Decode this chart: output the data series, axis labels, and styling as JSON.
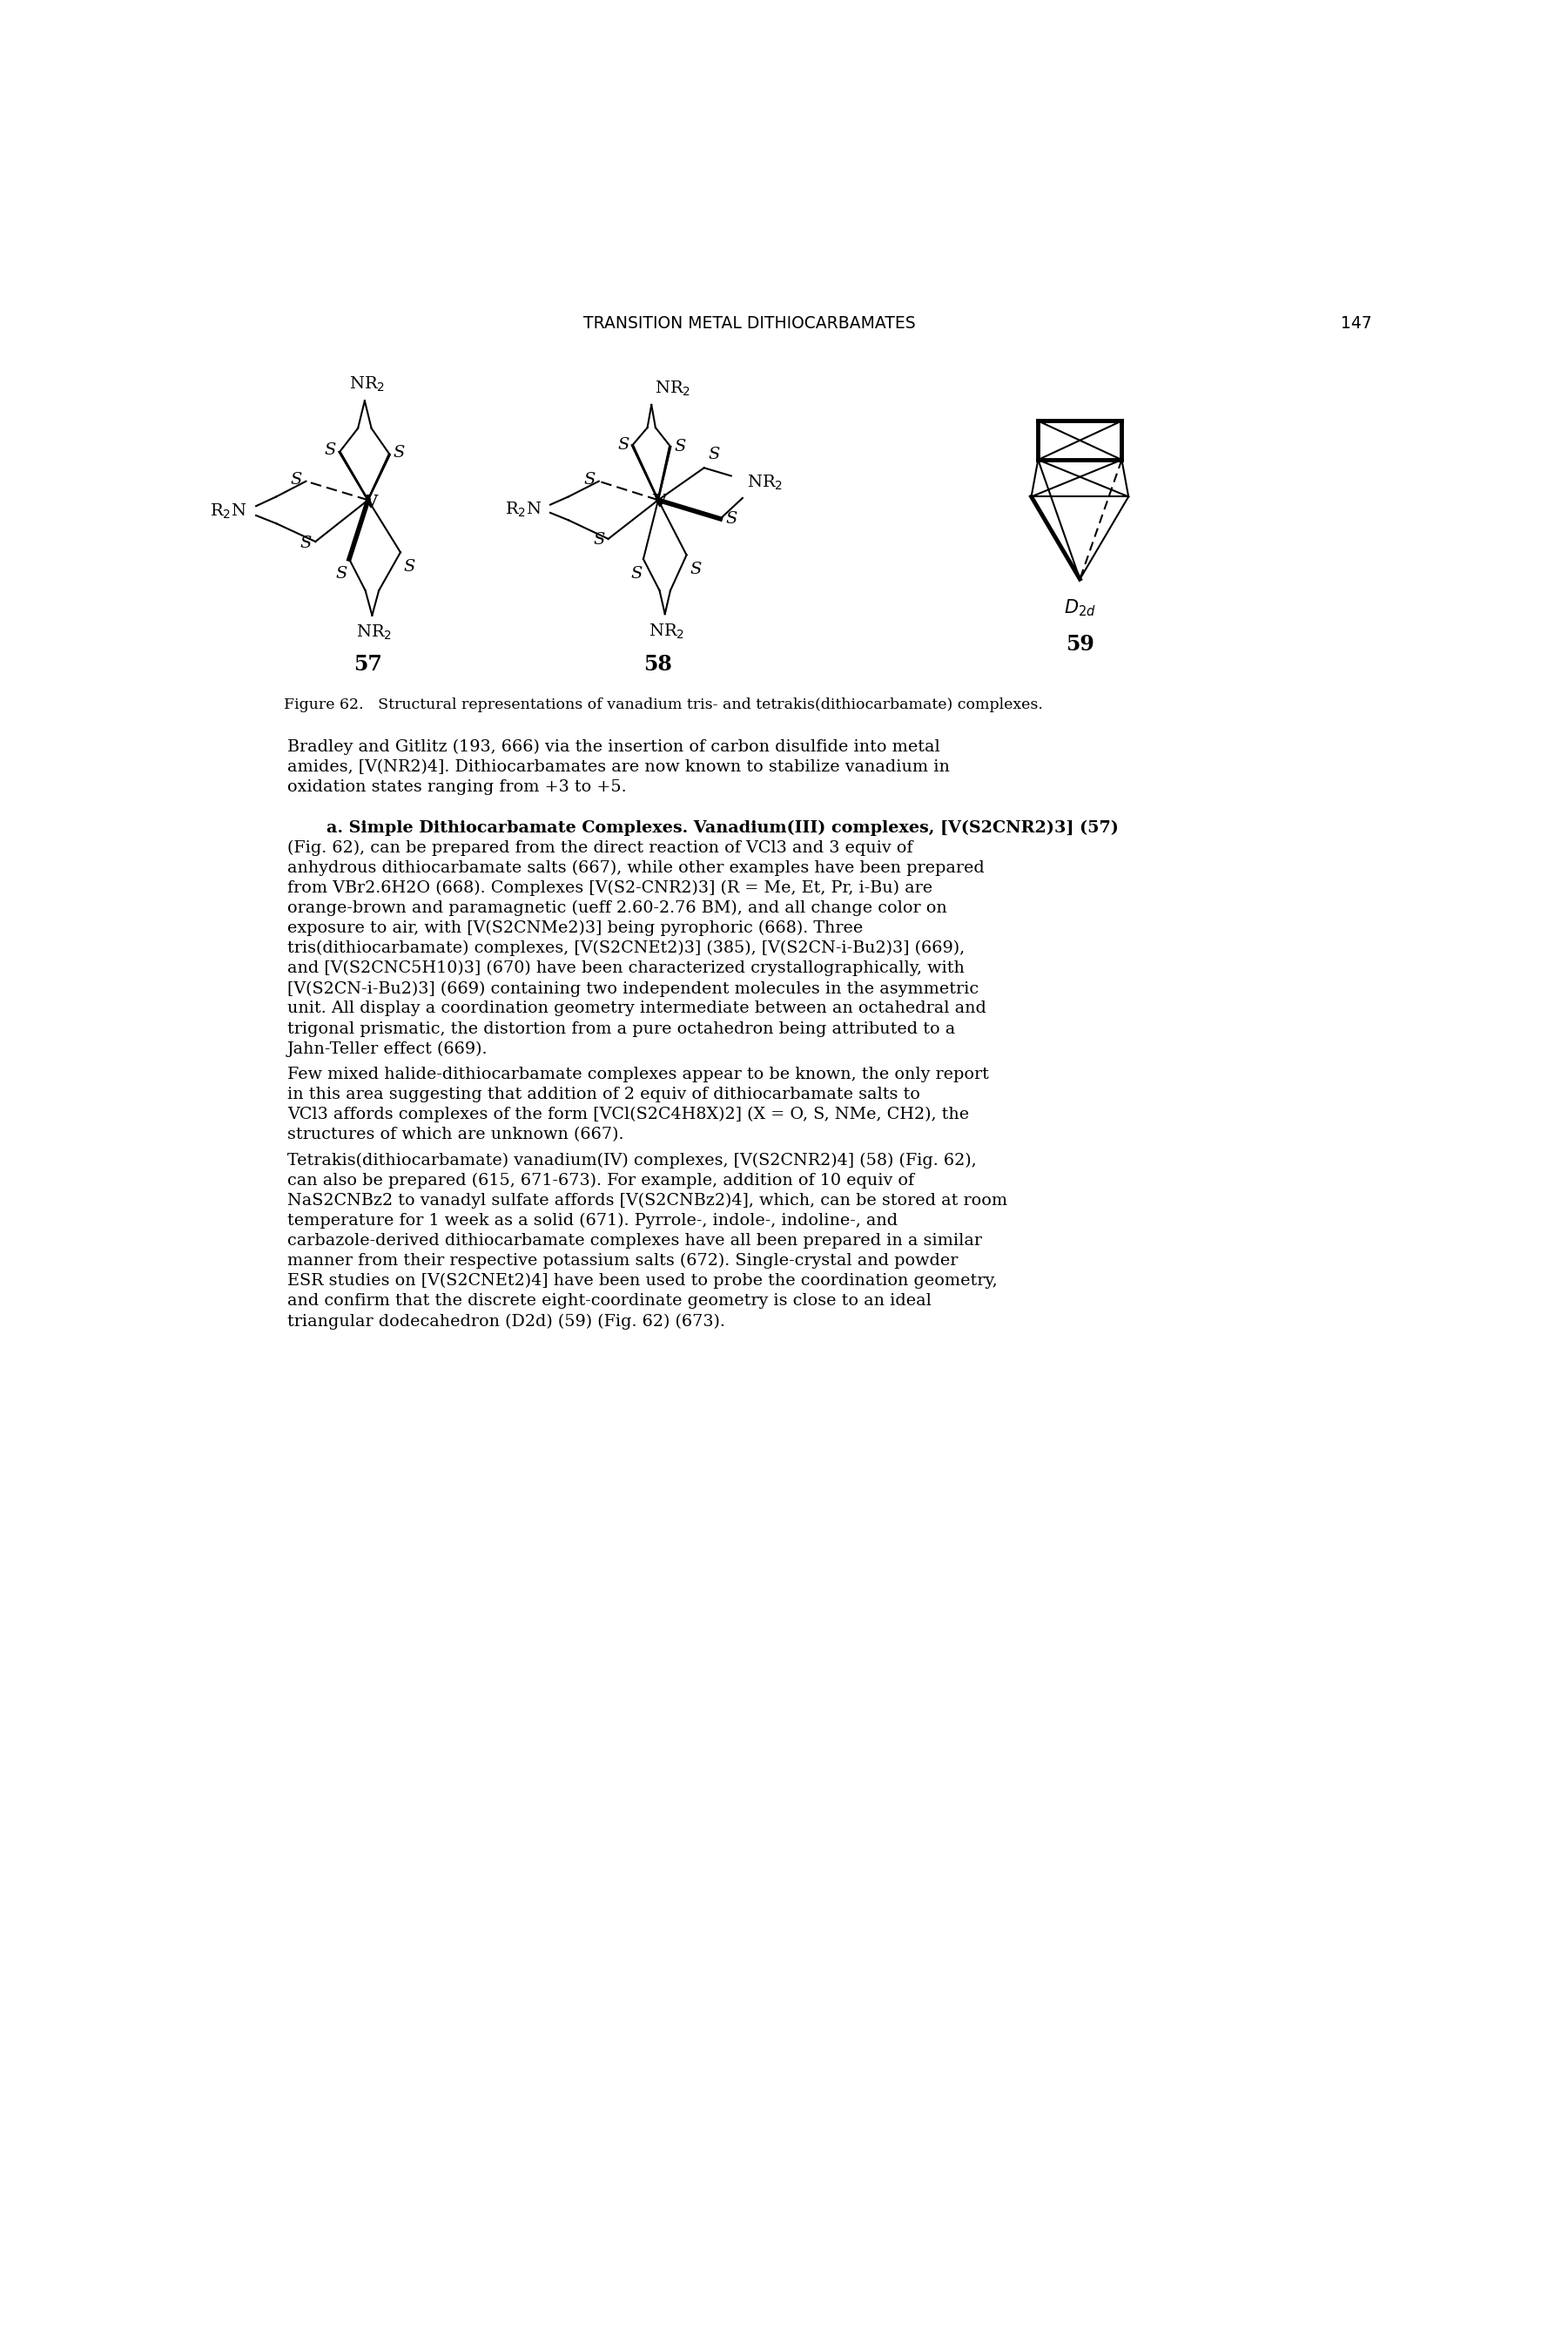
{
  "page_title": "TRANSITION METAL DITHIOCARBAMATES",
  "page_number": "147",
  "figure_caption": "Figure 62.   Structural representations of vanadium tris- and tetrakis(dithiocarbamate) complexes.",
  "compound_numbers": [
    "57",
    "58",
    "59"
  ],
  "background_color": "#ffffff",
  "text_color": "#000000",
  "body_text_1": "Bradley and Gitlitz (193, 666) via the insertion of carbon disulfide into metal amides, [V(NR2)4]. Dithiocarbamates are now known to stabilize vanadium in oxidation states ranging from +3 to +5.",
  "body_text_2a_bold": "a.  Simple  Dithiocarbamate  Complexes.",
  "body_text_2b": " Vanadium(III) complexes, [V(S2CNR2)3] (57) (Fig. 62), can be prepared from the direct reaction of VCl3 and 3 equiv of anhydrous dithiocarbamate salts (667), while other examples have been prepared from VBr2.6H2O (668). Complexes [V(S2-CNR2)3] (R = Me, Et, Pr, i-Bu) are orange-brown and paramagnetic (ueff 2.60-2.76 BM), and all change color on exposure to air, with [V(S2CNMe2)3] being pyrophoric (668). Three tris(dithiocarbamate) complexes, [V(S2CNEt2)3] (385), [V(S2CN-i-Bu2)3] (669), and [V(S2CNC5H10)3] (670) have been characterized crystallographically, with [V(S2CN-i-Bu2)3] (669) containing two independent molecules in the asymmetric unit. All display a coordination geometry intermediate between an octahedral and trigonal prismatic, the distortion from a pure octahedron being attributed to a Jahn-Teller effect (669).",
  "body_text_3": "    Few mixed halide-dithiocarbamate complexes appear to be known, the only report in this area suggesting that addition of 2 equiv of dithiocarbamate salts to VCl3 affords complexes of the form [VCl(S2C4H8X)2] (X = O, S, NMe, CH2), the structures of which are unknown (667).",
  "body_text_4": "    Tetrakis(dithiocarbamate) vanadium(IV) complexes, [V(S2CNR2)4] (58) (Fig. 62), can also be prepared (615, 671-673). For example, addition of 10 equiv of NaS2CNBz2 to vanadyl sulfate affords [V(S2CNBz2)4], which, can be stored at room temperature for 1 week as a solid (671). Pyrrole-, indole-, indoline-, and carbazole-derived dithiocarbamate complexes have all been prepared in a similar manner from their respective potassium salts (672). Single-crystal and powder ESR studies on [V(S2CNEt2)4] have been used to probe the coordination geometry, and confirm that the discrete eight-coordinate geometry is close to an ideal triangular dodecahedron (D2d) (59) (Fig. 62) (673)."
}
